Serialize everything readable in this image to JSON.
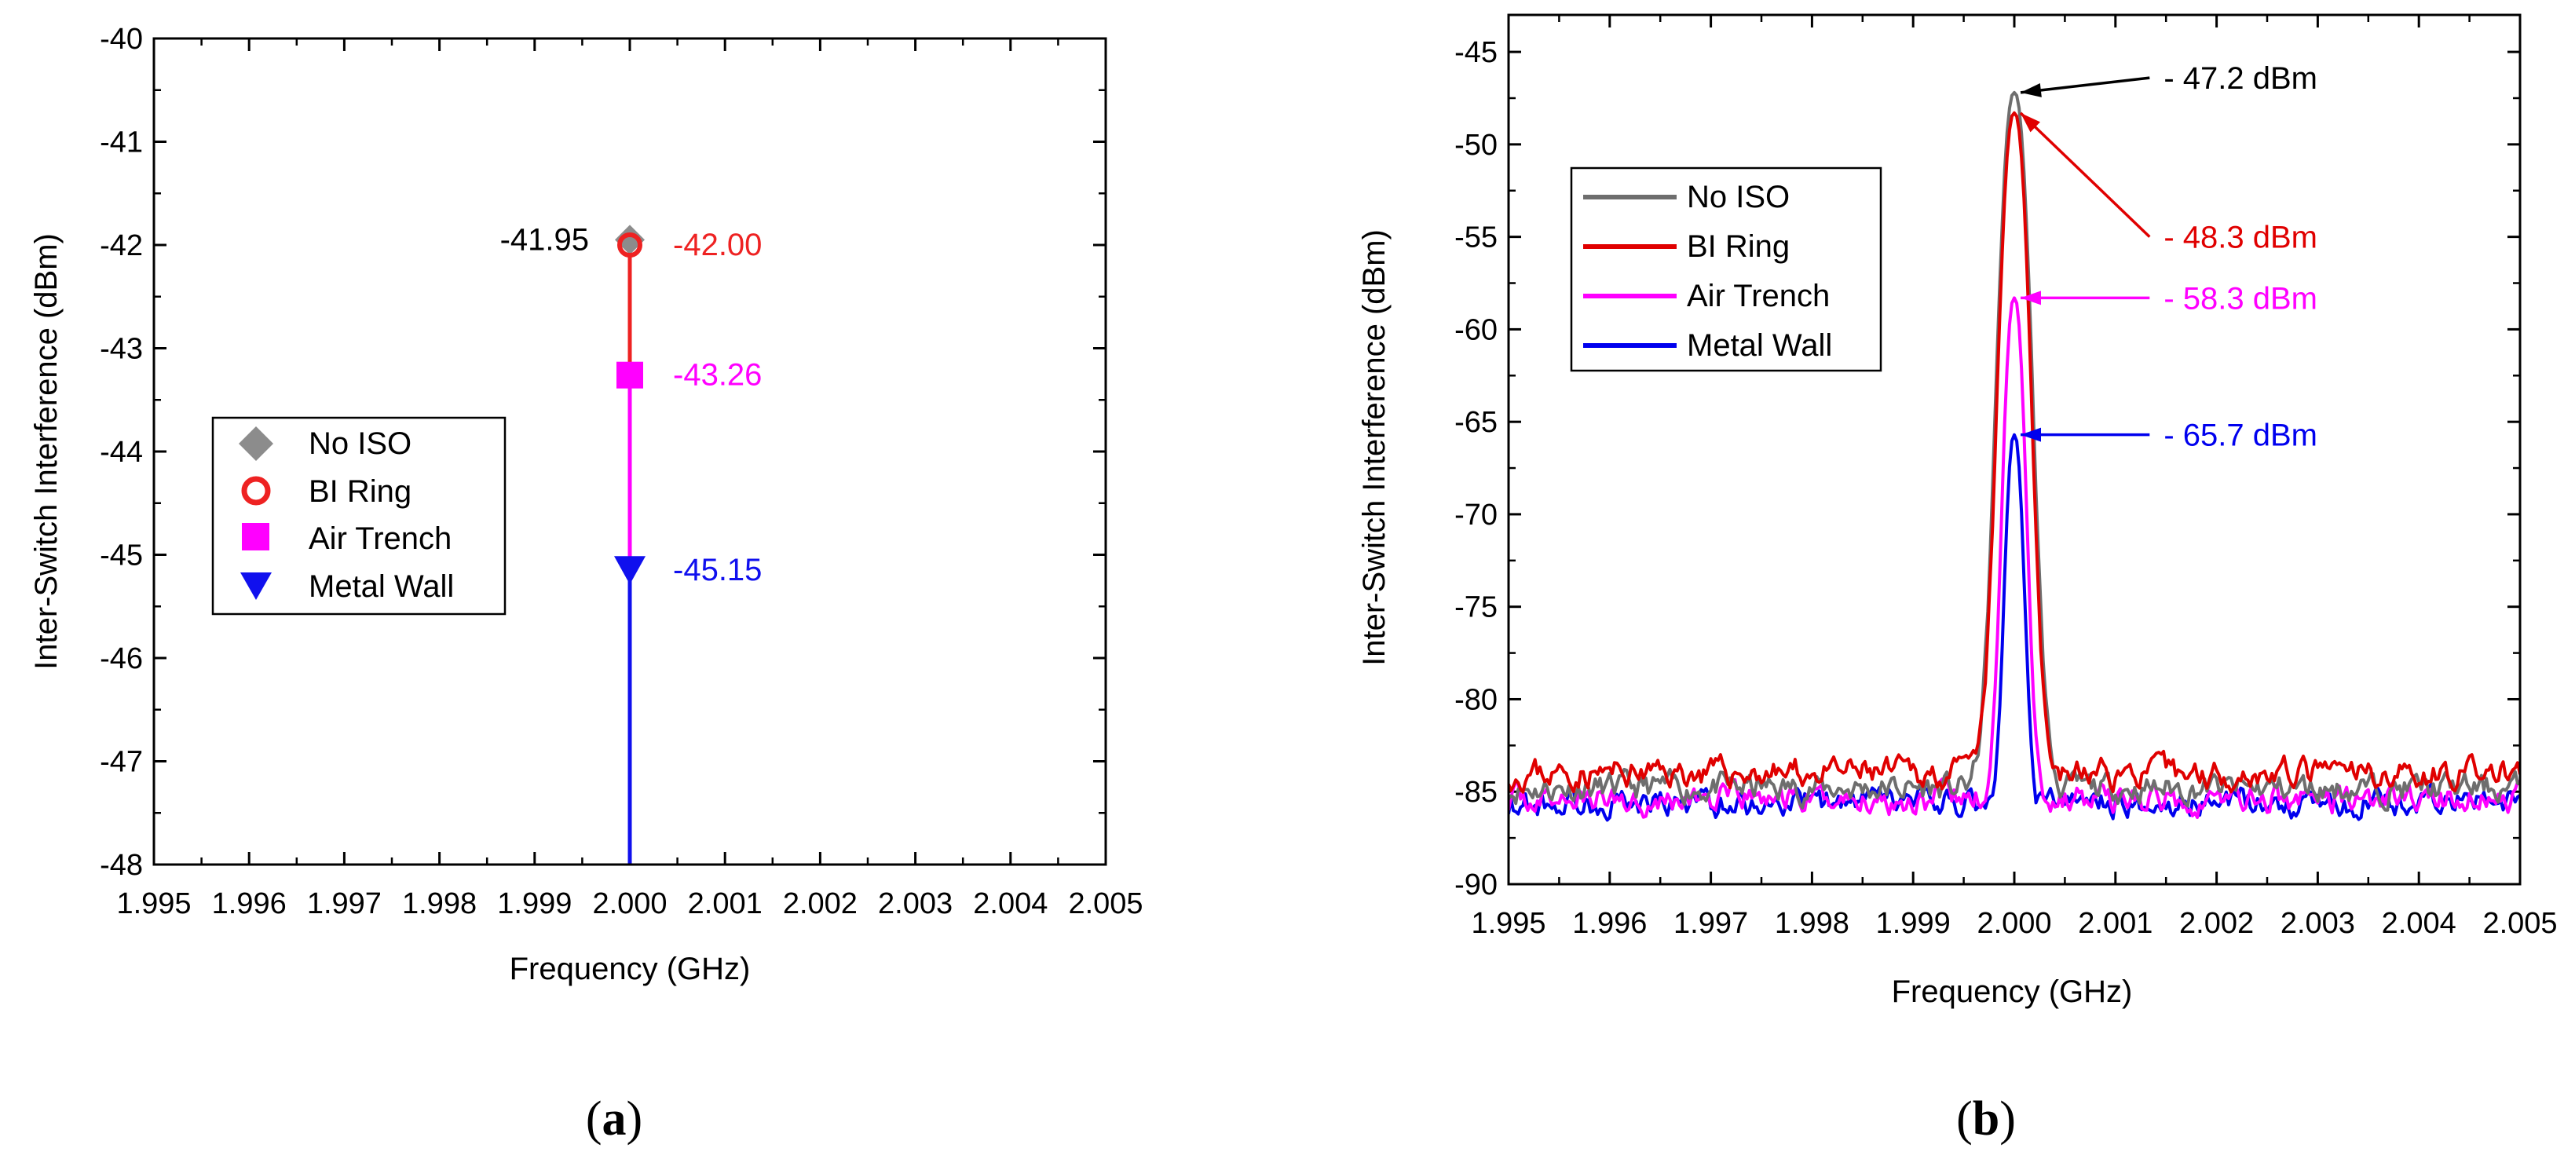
{
  "chart_data": [
    {
      "type": "scatter",
      "panel_label": {
        "open": "(",
        "letter": "a",
        "close": ")"
      },
      "xlabel": "Frequency (GHz)",
      "ylabel": "Inter-Switch Interference (dBm)",
      "xlim": [
        1.995,
        2.005
      ],
      "ylim": [
        -48,
        -40
      ],
      "xticks": [
        "1.995",
        "1.996",
        "1.997",
        "1.998",
        "1.999",
        "2.000",
        "2.001",
        "2.002",
        "2.003",
        "2.004",
        "2.005"
      ],
      "yticks": [
        "-48",
        "-47",
        "-46",
        "-45",
        "-44",
        "-43",
        "-42",
        "-41",
        "-40"
      ],
      "series": [
        {
          "name": "No ISO",
          "x": 2.0,
          "y": -41.95,
          "label": "-41.95",
          "color": "#8c8c8c",
          "marker": "diamond"
        },
        {
          "name": "BI Ring",
          "x": 2.0,
          "y": -42.0,
          "label": "-42.00",
          "color": "#ee2222",
          "marker": "circle"
        },
        {
          "name": "Air Trench",
          "x": 2.0,
          "y": -43.26,
          "label": "-43.26",
          "color": "#ff00ff",
          "marker": "square"
        },
        {
          "name": "Metal Wall",
          "x": 2.0,
          "y": -45.15,
          "label": "-45.15",
          "color": "#1010ee",
          "marker": "triangle-down"
        }
      ],
      "stems": [
        {
          "from": -48,
          "to": -45.15,
          "color": "#1010ee"
        },
        {
          "from": -45.15,
          "to": -43.26,
          "color": "#ff00ff"
        },
        {
          "from": -43.26,
          "to": -42.0,
          "color": "#ee2222"
        }
      ],
      "legend_position": "center-left"
    },
    {
      "type": "line",
      "panel_label": {
        "open": "(",
        "letter": "b",
        "close": ")"
      },
      "xlabel": "Frequency (GHz)",
      "ylabel": "Inter-Switch Interference (dBm)",
      "xlim": [
        1.995,
        2.005
      ],
      "ylim": [
        -90,
        -43
      ],
      "xticks": [
        "1.995",
        "1.996",
        "1.997",
        "1.998",
        "1.999",
        "2.000",
        "2.001",
        "2.002",
        "2.003",
        "2.004",
        "2.005"
      ],
      "yticks": [
        "-90",
        "-85",
        "-80",
        "-75",
        "-70",
        "-65",
        "-60",
        "-55",
        "-50",
        "-45"
      ],
      "center_frequency": 2.0,
      "series": [
        {
          "name": "No ISO",
          "color": "#6e6e6e",
          "peak": -47.2,
          "floor": -84.8,
          "half_width": 0.00032,
          "seed": 11
        },
        {
          "name": "BI Ring",
          "color": "#e00000",
          "peak": -48.3,
          "floor": -84.0,
          "half_width": 0.0003,
          "seed": 23
        },
        {
          "name": "Air Trench",
          "color": "#ff00ff",
          "peak": -58.3,
          "floor": -85.4,
          "half_width": 0.00022,
          "seed": 37
        },
        {
          "name": "Metal Wall",
          "color": "#0000ee",
          "peak": -65.7,
          "floor": -85.6,
          "half_width": 0.00018,
          "seed": 53
        }
      ],
      "annotations": [
        {
          "text": "- 47.2 dBm",
          "y": -47.2,
          "color": "#000000"
        },
        {
          "text": "- 48.3 dBm",
          "y": -48.3,
          "color": "#e00000"
        },
        {
          "text": "- 58.3 dBm",
          "y": -58.3,
          "color": "#ff00ff"
        },
        {
          "text": "- 65.7 dBm",
          "y": -65.7,
          "color": "#0000ee"
        }
      ],
      "legend_position": "upper-left"
    }
  ]
}
